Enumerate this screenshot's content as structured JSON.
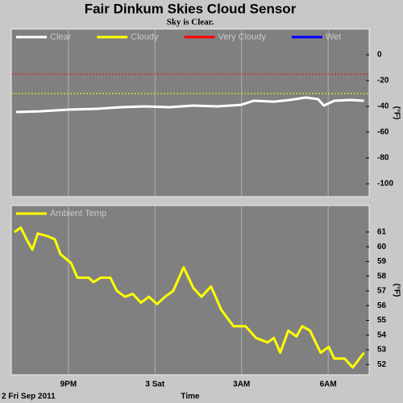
{
  "chart_data": [
    {
      "type": "line",
      "title": "Fair Dinkum Skies Cloud Sensor",
      "subtitle": "Sky is Clear.",
      "ylabel": "(°F)",
      "ylim": [
        -110,
        20
      ],
      "yticks": [
        0,
        -20,
        -40,
        -60,
        -80,
        -100
      ],
      "grid": "x",
      "series": [
        {
          "name": "Clear",
          "color": "#ffffff",
          "x": [
            19.19,
            20.02,
            21.0,
            21.98,
            22.82,
            23.65,
            24.49,
            25.33,
            26.16,
            26.98,
            27.42,
            28.12,
            28.68,
            29.23,
            29.65,
            29.85,
            30.21,
            30.77,
            31.24
          ],
          "values": [
            -44.4,
            -43.8,
            -42.5,
            -41.9,
            -40.6,
            -40,
            -40.6,
            -39.4,
            -40,
            -38.8,
            -35.6,
            -36.3,
            -35,
            -33.1,
            -34.4,
            -39.4,
            -35.6,
            -35,
            -35.6
          ]
        },
        {
          "name": "Cloudy",
          "color": "#ffff00",
          "threshold": -30
        },
        {
          "name": "Very Cloudy",
          "color": "#ff0000",
          "threshold": -15
        },
        {
          "name": "Wet",
          "color": "#0000ff"
        }
      ]
    },
    {
      "type": "line",
      "ylabel": "(°F)",
      "xlabel": "Time",
      "x_start_label": "2 Fri Sep 2011",
      "xlim": [
        19.02,
        31.42
      ],
      "xticks": [
        {
          "value": 21,
          "label": "9PM"
        },
        {
          "value": 24,
          "label": "3 Sat"
        },
        {
          "value": 27,
          "label": "3AM"
        },
        {
          "value": 30,
          "label": "6AM"
        }
      ],
      "ylim": [
        51.3,
        62.8
      ],
      "yticks": [
        52,
        53,
        54,
        55,
        56,
        57,
        58,
        59,
        60,
        61
      ],
      "grid": "x",
      "series": [
        {
          "name": "Ambient Temp",
          "color": "#ffff00",
          "x": [
            19.13,
            19.35,
            19.55,
            19.75,
            19.94,
            20.3,
            20.53,
            20.72,
            21.09,
            21.31,
            21.7,
            21.87,
            22.12,
            22.45,
            22.68,
            22.96,
            23.23,
            23.51,
            23.79,
            24.07,
            24.35,
            24.63,
            24.99,
            25.33,
            25.61,
            25.94,
            26.3,
            26.72,
            27.14,
            27.5,
            27.9,
            28.12,
            28.34,
            28.62,
            28.9,
            29.1,
            29.37,
            29.74,
            30.02,
            30.21,
            30.57,
            30.85,
            31.24
          ],
          "values": [
            61.0,
            61.3,
            60.5,
            59.8,
            60.9,
            60.7,
            60.5,
            59.5,
            58.9,
            57.9,
            57.9,
            57.6,
            57.9,
            57.9,
            57.0,
            56.6,
            56.8,
            56.2,
            56.6,
            56.1,
            56.6,
            57.0,
            58.6,
            57.2,
            56.6,
            57.3,
            55.7,
            54.6,
            54.6,
            53.8,
            53.5,
            53.8,
            52.8,
            54.3,
            53.9,
            54.6,
            54.3,
            52.8,
            53.2,
            52.4,
            52.4,
            51.8,
            52.8
          ]
        }
      ]
    }
  ]
}
